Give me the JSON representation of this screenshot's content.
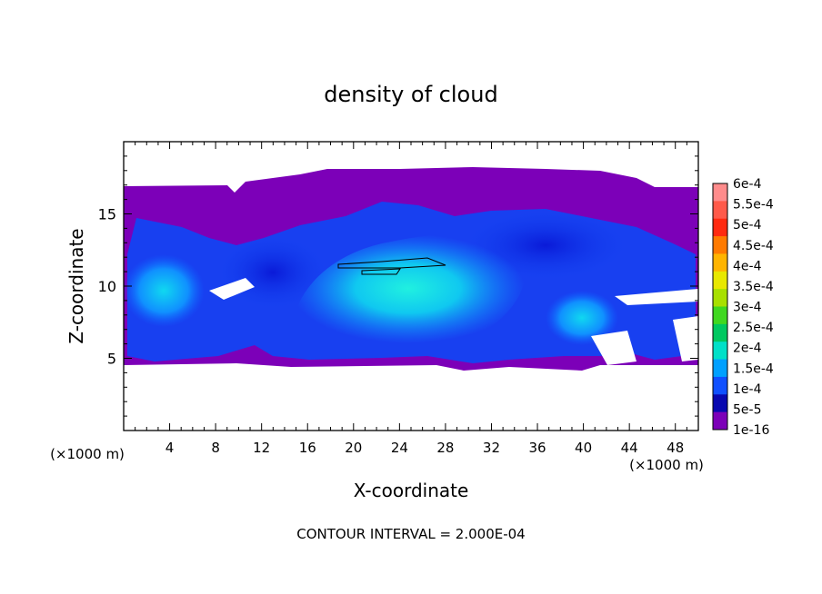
{
  "chart_data": {
    "type": "heatmap",
    "title": "density of cloud",
    "xlabel": "X-coordinate",
    "ylabel": "Z-coordinate",
    "x_unit_left": "(×1000 m)",
    "x_unit_right": "(×1000 m)",
    "footer": "CONTOUR INTERVAL = 2.000E-04",
    "xlim": [
      0,
      50
    ],
    "ylim": [
      0,
      20
    ],
    "x_ticks": [
      "4",
      "8",
      "12",
      "16",
      "20",
      "24",
      "28",
      "32",
      "36",
      "40",
      "44",
      "48"
    ],
    "x_tick_values": [
      4,
      8,
      12,
      16,
      20,
      24,
      28,
      32,
      36,
      40,
      44,
      48
    ],
    "y_ticks": [
      "5",
      "10",
      "15"
    ],
    "y_tick_values": [
      5,
      10,
      15
    ],
    "colorbar": {
      "labels": [
        "6e-4",
        "5.5e-4",
        "5e-4",
        "4.5e-4",
        "4e-4",
        "3.5e-4",
        "3e-4",
        "2.5e-4",
        "2e-4",
        "1.5e-4",
        "1e-4",
        "5e-5",
        "1e-16"
      ],
      "colors": [
        "#ff8c8c",
        "#ff5a4a",
        "#ff2a10",
        "#ff7a00",
        "#ffb400",
        "#e8e800",
        "#a8e000",
        "#40d820",
        "#00c860",
        "#00e0c8",
        "#00a0ff",
        "#1050ff",
        "#0808b0",
        "#7c00b8"
      ]
    },
    "notes": "Cloud density field ~5–17 km altitude across 0–50 km; highest values (≈2e-4, cyan) near x 18–32 km, z 8–12 km; single contour line at 2e-4."
  }
}
